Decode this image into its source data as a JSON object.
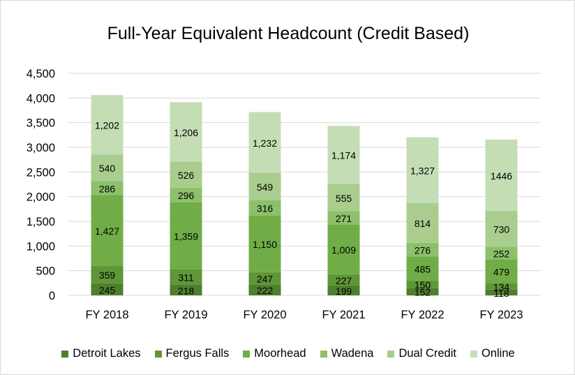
{
  "chart_data": {
    "type": "bar",
    "stacked": true,
    "title": "Full-Year Equivalent Headcount (Credit Based)",
    "categories": [
      "FY 2018",
      "FY 2019",
      "FY 2020",
      "FY 2021",
      "FY 2022",
      "FY 2023"
    ],
    "ylim": [
      0,
      4500
    ],
    "yticks": [
      0,
      500,
      1000,
      1500,
      2000,
      2500,
      3000,
      3500,
      4000,
      4500
    ],
    "ytick_labels": [
      "0",
      "500",
      "1,000",
      "1,500",
      "2,000",
      "2,500",
      "3,000",
      "3,500",
      "4,000",
      "4,500"
    ],
    "grid": true,
    "legend_position": "bottom",
    "series": [
      {
        "name": "Detroit Lakes",
        "color": "#4e7f2e",
        "values": [
          245,
          218,
          222,
          199,
          152,
          118
        ],
        "labels": [
          "245",
          "218",
          "222",
          "199",
          "152",
          "118"
        ]
      },
      {
        "name": "Fergus Falls",
        "color": "#5f9638",
        "values": [
          359,
          311,
          247,
          227,
          150,
          134
        ],
        "labels": [
          "359",
          "311",
          "247",
          "227",
          "150",
          "134"
        ]
      },
      {
        "name": "Moorhead",
        "color": "#70ad47",
        "values": [
          1427,
          1359,
          1150,
          1009,
          485,
          479
        ],
        "labels": [
          "1,427",
          "1,359",
          "1,150",
          "1,009",
          "485",
          "479"
        ]
      },
      {
        "name": "Wadena",
        "color": "#8dc06a",
        "values": [
          286,
          296,
          316,
          271,
          276,
          252
        ],
        "labels": [
          "286",
          "296",
          "316",
          "271",
          "276",
          "252"
        ]
      },
      {
        "name": "Dual Credit",
        "color": "#a9cd8e",
        "values": [
          540,
          526,
          549,
          555,
          814,
          730
        ],
        "labels": [
          "540",
          "526",
          "549",
          "555",
          "814",
          "730"
        ]
      },
      {
        "name": "Online",
        "color": "#c5ddb4",
        "values": [
          1202,
          1206,
          1232,
          1174,
          1327,
          1446
        ],
        "labels": [
          "1,202",
          "1,206",
          "1,232",
          "1,174",
          "1,327",
          "1446"
        ]
      }
    ]
  }
}
